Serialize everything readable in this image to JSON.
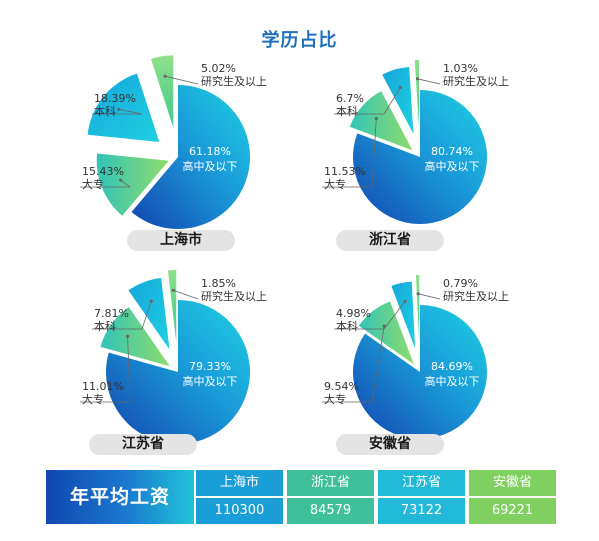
{
  "title": "学历占比",
  "colors": {
    "title": "#1f6fbf",
    "undergrad_blue_dark": "#1245b0",
    "undergrad_blue_light": "#1ec8e0",
    "main_cyan": "#1ed2e2",
    "college_green": "#8fdc6a",
    "grad_green": "#3fc98a",
    "leader_line": "#666666"
  },
  "chart_data": [
    {
      "type": "pie",
      "city": "上海市",
      "slices": [
        {
          "pct": "61.18%",
          "label": "高中及以下",
          "value": 61.18
        },
        {
          "pct": "15.43%",
          "label": "大专",
          "value": 15.43
        },
        {
          "pct": "18.39%",
          "label": "本科",
          "value": 18.39
        },
        {
          "pct": "5.02%",
          "label": "研究生及以上",
          "value": 5.02
        }
      ]
    },
    {
      "type": "pie",
      "city": "浙江省",
      "slices": [
        {
          "pct": "80.74%",
          "label": "高中及以下",
          "value": 80.74
        },
        {
          "pct": "11.53%",
          "label": "大专",
          "value": 11.53
        },
        {
          "pct": "6.7%",
          "label": "本科",
          "value": 6.7
        },
        {
          "pct": "1.03%",
          "label": "研究生及以上",
          "value": 1.03
        }
      ]
    },
    {
      "type": "pie",
      "city": "江苏省",
      "slices": [
        {
          "pct": "79.33%",
          "label": "高中及以下",
          "value": 79.33
        },
        {
          "pct": "11.01%",
          "label": "大专",
          "value": 11.01
        },
        {
          "pct": "7.81%",
          "label": "本科",
          "value": 7.81
        },
        {
          "pct": "1.85%",
          "label": "研究生及以上",
          "value": 1.85
        }
      ]
    },
    {
      "type": "pie",
      "city": "安徽省",
      "slices": [
        {
          "pct": "84.69%",
          "label": "高中及以下",
          "value": 84.69
        },
        {
          "pct": "9.54%",
          "label": "大专",
          "value": 9.54
        },
        {
          "pct": "4.98%",
          "label": "本科",
          "value": 4.98
        },
        {
          "pct": "0.79%",
          "label": "研究生及以上",
          "value": 0.79
        }
      ]
    }
  ],
  "wage_table": {
    "heading": "年平均工资",
    "columns": [
      {
        "region": "上海市",
        "wage": "110300",
        "color": "#1a9ed8"
      },
      {
        "region": "浙江省",
        "wage": "84579",
        "color": "#3fbf9a"
      },
      {
        "region": "江苏省",
        "wage": "73122",
        "color": "#22b8d8"
      },
      {
        "region": "安徽省",
        "wage": "69221",
        "color": "#7fd060"
      }
    ]
  }
}
